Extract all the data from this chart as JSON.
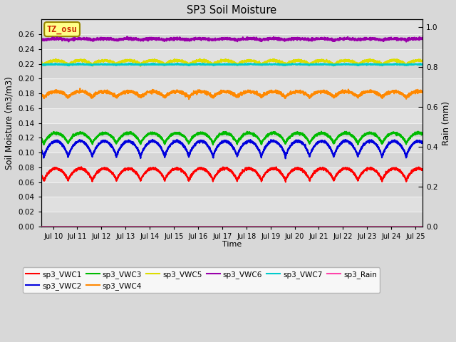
{
  "title": "SP3 Soil Moisture",
  "xlabel": "Time",
  "ylabel_left": "Soil Moisture (m3/m3)",
  "ylabel_right": "Rain (mm)",
  "xlim_days": [
    9.5,
    25.3
  ],
  "ylim_left": [
    0.0,
    0.28
  ],
  "ylim_right": [
    0.0,
    1.04
  ],
  "xtick_days": [
    10,
    11,
    12,
    13,
    14,
    15,
    16,
    17,
    18,
    19,
    20,
    21,
    22,
    23,
    24,
    25
  ],
  "xtick_labels": [
    "Jul 10",
    "Jul 11",
    "Jul 12",
    "Jul 13",
    "Jul 14",
    "Jul 15",
    "Jul 16",
    "Jul 17",
    "Jul 18",
    "Jul 19",
    "Jul 20",
    "Jul 21",
    "Jul 22",
    "Jul 23",
    "Jul 24",
    "Jul 25"
  ],
  "yticks_left": [
    0.0,
    0.02,
    0.04,
    0.06,
    0.08,
    0.1,
    0.12,
    0.14,
    0.16,
    0.18,
    0.2,
    0.22,
    0.24,
    0.26
  ],
  "yticks_right": [
    0.0,
    0.2,
    0.4,
    0.6,
    0.8,
    1.0
  ],
  "background_color": "#d8d8d8",
  "plot_bg_color": "#e0e0e0",
  "grid_color": "#f0f0f0",
  "series": [
    {
      "name": "sp3_VWC1",
      "color": "#ff0000",
      "base": 0.07,
      "amp": 0.0085,
      "period": 1.0,
      "phase": 0.62,
      "noise": 0.0008,
      "lw": 1.5
    },
    {
      "name": "sp3_VWC2",
      "color": "#0000dd",
      "base": 0.1045,
      "amp": 0.011,
      "period": 1.0,
      "phase": 0.62,
      "noise": 0.0008,
      "lw": 1.5
    },
    {
      "name": "sp3_VWC3",
      "color": "#00bb00",
      "base": 0.119,
      "amp": 0.0075,
      "period": 1.0,
      "phase": 0.62,
      "noise": 0.0008,
      "lw": 1.5
    },
    {
      "name": "sp3_VWC4",
      "color": "#ff8800",
      "base": 0.1785,
      "amp": 0.004,
      "period": 1.0,
      "phase": 0.62,
      "noise": 0.001,
      "lw": 1.5
    },
    {
      "name": "sp3_VWC5",
      "color": "#dddd00",
      "base": 0.2215,
      "amp": 0.003,
      "period": 1.0,
      "phase": 0.62,
      "noise": 0.0008,
      "lw": 1.5
    },
    {
      "name": "sp3_VWC6",
      "color": "#9900aa",
      "base": 0.253,
      "amp": 0.001,
      "period": 1.0,
      "phase": 0.62,
      "noise": 0.0008,
      "lw": 1.5
    },
    {
      "name": "sp3_VWC7",
      "color": "#00cccc",
      "base": 0.219,
      "amp": 0.0005,
      "period": 1.0,
      "phase": 0.62,
      "noise": 0.0004,
      "lw": 1.5
    },
    {
      "name": "sp3_Rain",
      "color": "#ff44aa",
      "base": 0.0,
      "amp": 0.0,
      "period": 1.0,
      "phase": 0.0,
      "noise": 0.0,
      "lw": 1.0
    }
  ],
  "legend_entries": [
    {
      "label": "sp3_VWC1",
      "color": "#ff0000"
    },
    {
      "label": "sp3_VWC2",
      "color": "#0000dd"
    },
    {
      "label": "sp3_VWC3",
      "color": "#00bb00"
    },
    {
      "label": "sp3_VWC4",
      "color": "#ff8800"
    },
    {
      "label": "sp3_VWC5",
      "color": "#dddd00"
    },
    {
      "label": "sp3_VWC6",
      "color": "#9900aa"
    },
    {
      "label": "sp3_VWC7",
      "color": "#00cccc"
    },
    {
      "label": "sp3_Rain",
      "color": "#ff44aa"
    }
  ],
  "watermark_text": "TZ_osu",
  "watermark_color": "#cc2200",
  "watermark_bg": "#ffff88",
  "watermark_border": "#998800"
}
